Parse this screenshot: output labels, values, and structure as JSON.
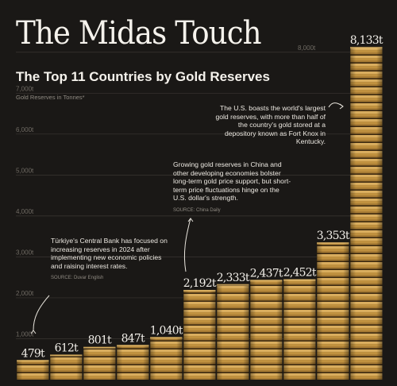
{
  "title": "The Midas Touch",
  "subtitle": "The Top 11 Countries by Gold Reserves",
  "chart_data": {
    "type": "bar",
    "ylabel": "Gold Reserves in Tonnes*",
    "ylim": [
      0,
      8500
    ],
    "y_ticks": [
      {
        "value": 1000,
        "label": "1,000t"
      },
      {
        "value": 2000,
        "label": "2,000t"
      },
      {
        "value": 3000,
        "label": "3,000t"
      },
      {
        "value": 4000,
        "label": "4,000t"
      },
      {
        "value": 5000,
        "label": "5,000t"
      },
      {
        "value": 6000,
        "label": "6,000t"
      },
      {
        "value": 7000,
        "label": "7,000t"
      },
      {
        "value": 8000,
        "label": "8,000t"
      }
    ],
    "values": [
      479,
      612,
      801,
      847,
      1040,
      2192,
      2333,
      2437,
      2452,
      3353,
      8133
    ],
    "value_labels": [
      "479t",
      "612t",
      "801t",
      "847t",
      "1,040t",
      "2,192t",
      "2,333t",
      "2,437t",
      "2,452t",
      "3,353t",
      "8,133t"
    ],
    "grid": true,
    "bar_color": "#b98a3c"
  },
  "annotations": [
    {
      "text": "Türkiye's Central Bank has focused on increasing reserves in 2024 after implementing new economic policies and raising interest rates.",
      "source": "SOURCE: Duvar English"
    },
    {
      "text": "Growing gold reserves in China and other developing economies bolster long-term gold price support, but short-term price fluctuations hinge on the U.S. dollar's strength.",
      "source": "SOURCE: China Daily"
    },
    {
      "text": "The U.S. boasts the world's largest gold reserves, with more than half of the country's gold stored at a depository known as Fort Knox in Kentucky.",
      "source": ""
    }
  ]
}
